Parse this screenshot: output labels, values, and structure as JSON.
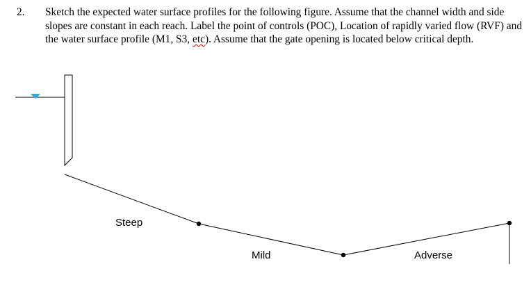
{
  "question": {
    "number": "2.",
    "text_before": "Sketch the expected water surface profiles for the following figure.  Assume that the channel width and side slopes are constant in each reach.  Label the point of controls (POC), Location of rapidly varied flow (RVF) and the water surface profile (M1, S3, ",
    "text_marked": "etc",
    "text_after": ").  Assume that the gate opening is located below critical depth."
  },
  "diagram": {
    "reaches": [
      {
        "label": "Steep"
      },
      {
        "label": "Mild"
      },
      {
        "label": "Adverse"
      }
    ],
    "colors": {
      "line": "#000000",
      "water_marker": "#29a9e0"
    }
  }
}
